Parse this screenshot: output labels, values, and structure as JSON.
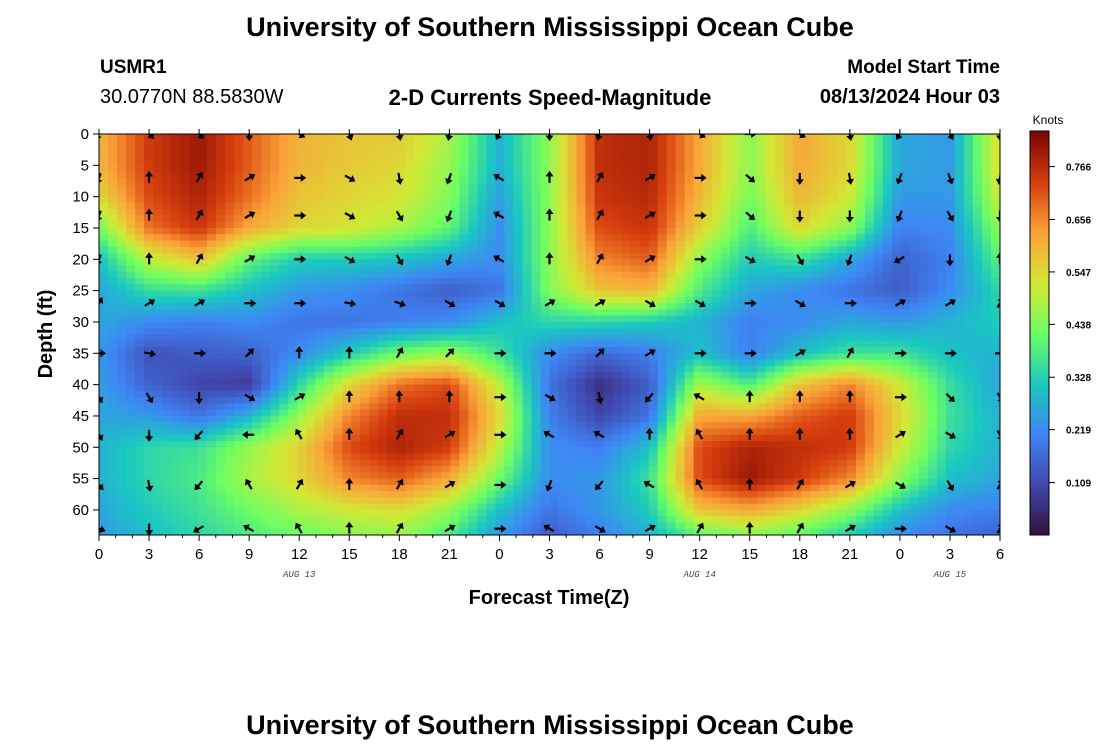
{
  "page": {
    "title": "University of Southern Mississippi Ocean Cube",
    "footer_title": "University of Southern Mississippi Ocean Cube"
  },
  "station": {
    "id": "USMR1",
    "coords": "30.0770N  88.5830W"
  },
  "plot": {
    "subtitle": "2-D Currents Speed-Magnitude",
    "model_start_label": "Model Start Time",
    "model_start_value": "08/13/2024 Hour 03"
  },
  "colors": {
    "background": "#ffffff",
    "axis": "#000000",
    "arrow": "#000000"
  },
  "chart_data": {
    "type": "heatmap",
    "title": "2-D Currents Speed-Magnitude",
    "xlabel": "Forecast Time(Z)",
    "ylabel": "Depth (ft)",
    "x_tick_labels": [
      "0",
      "3",
      "6",
      "9",
      "12",
      "15",
      "18",
      "21",
      "0",
      "3",
      "6",
      "9",
      "12",
      "15",
      "18",
      "21",
      "0",
      "3",
      "6"
    ],
    "x_range_hours": [
      0,
      54
    ],
    "y_ticks": [
      0,
      5,
      10,
      15,
      20,
      25,
      30,
      35,
      40,
      45,
      50,
      55,
      60
    ],
    "y_range_ft": [
      0,
      64
    ],
    "y_inverted": true,
    "date_labels": [
      {
        "text": "AUG 13",
        "hour": 12
      },
      {
        "text": "AUG 14",
        "hour": 36
      },
      {
        "text": "AUG 15",
        "hour": 51
      }
    ],
    "colorbar": {
      "unit": "Knots",
      "ticks": [
        0.766,
        0.656,
        0.547,
        0.438,
        0.328,
        0.219,
        0.109
      ],
      "range": [
        0.0,
        0.84
      ]
    },
    "speed_knots": {
      "x_hours": [
        0,
        3,
        6,
        9,
        12,
        15,
        18,
        21,
        24,
        27,
        30,
        33,
        36,
        39,
        42,
        45,
        48,
        51,
        54
      ],
      "depth_ft": [
        0,
        5,
        10,
        15,
        20,
        25,
        30,
        35,
        40,
        45,
        50,
        55,
        60,
        64
      ],
      "values": [
        [
          0.6,
          0.74,
          0.8,
          0.7,
          0.6,
          0.58,
          0.57,
          0.48,
          0.28,
          0.45,
          0.76,
          0.78,
          0.62,
          0.45,
          0.62,
          0.55,
          0.26,
          0.24,
          0.55
        ],
        [
          0.6,
          0.74,
          0.8,
          0.7,
          0.6,
          0.57,
          0.55,
          0.46,
          0.28,
          0.45,
          0.76,
          0.78,
          0.62,
          0.45,
          0.62,
          0.55,
          0.26,
          0.24,
          0.55
        ],
        [
          0.55,
          0.72,
          0.78,
          0.68,
          0.58,
          0.55,
          0.53,
          0.44,
          0.25,
          0.45,
          0.75,
          0.77,
          0.6,
          0.43,
          0.6,
          0.52,
          0.24,
          0.24,
          0.52
        ],
        [
          0.42,
          0.68,
          0.75,
          0.62,
          0.55,
          0.53,
          0.48,
          0.4,
          0.22,
          0.45,
          0.72,
          0.75,
          0.56,
          0.38,
          0.55,
          0.45,
          0.2,
          0.22,
          0.46
        ],
        [
          0.3,
          0.5,
          0.58,
          0.4,
          0.32,
          0.32,
          0.3,
          0.26,
          0.22,
          0.45,
          0.66,
          0.7,
          0.45,
          0.32,
          0.36,
          0.26,
          0.15,
          0.2,
          0.4
        ],
        [
          0.26,
          0.35,
          0.36,
          0.3,
          0.24,
          0.22,
          0.18,
          0.14,
          0.18,
          0.44,
          0.58,
          0.6,
          0.38,
          0.26,
          0.22,
          0.18,
          0.14,
          0.22,
          0.34
        ],
        [
          0.26,
          0.22,
          0.2,
          0.22,
          0.18,
          0.18,
          0.2,
          0.22,
          0.3,
          0.34,
          0.34,
          0.32,
          0.28,
          0.2,
          0.22,
          0.26,
          0.24,
          0.28,
          0.32
        ],
        [
          0.24,
          0.12,
          0.14,
          0.15,
          0.22,
          0.32,
          0.42,
          0.46,
          0.36,
          0.22,
          0.16,
          0.2,
          0.3,
          0.2,
          0.3,
          0.36,
          0.36,
          0.3,
          0.28
        ],
        [
          0.25,
          0.15,
          0.1,
          0.08,
          0.34,
          0.55,
          0.68,
          0.72,
          0.5,
          0.18,
          0.06,
          0.14,
          0.48,
          0.38,
          0.58,
          0.66,
          0.52,
          0.35,
          0.26
        ],
        [
          0.26,
          0.24,
          0.18,
          0.28,
          0.46,
          0.66,
          0.76,
          0.76,
          0.55,
          0.2,
          0.1,
          0.18,
          0.62,
          0.62,
          0.7,
          0.74,
          0.55,
          0.36,
          0.28
        ],
        [
          0.28,
          0.34,
          0.36,
          0.46,
          0.56,
          0.72,
          0.78,
          0.74,
          0.5,
          0.22,
          0.2,
          0.3,
          0.72,
          0.78,
          0.76,
          0.74,
          0.52,
          0.34,
          0.28
        ],
        [
          0.28,
          0.34,
          0.38,
          0.48,
          0.55,
          0.66,
          0.7,
          0.62,
          0.42,
          0.22,
          0.24,
          0.36,
          0.72,
          0.8,
          0.74,
          0.66,
          0.45,
          0.3,
          0.26
        ],
        [
          0.26,
          0.32,
          0.36,
          0.42,
          0.48,
          0.52,
          0.54,
          0.46,
          0.3,
          0.18,
          0.24,
          0.32,
          0.58,
          0.62,
          0.55,
          0.45,
          0.3,
          0.22,
          0.2
        ],
        [
          0.24,
          0.3,
          0.34,
          0.38,
          0.42,
          0.45,
          0.46,
          0.38,
          0.24,
          0.14,
          0.2,
          0.28,
          0.4,
          0.45,
          0.4,
          0.32,
          0.22,
          0.18,
          0.15
        ]
      ]
    },
    "direction_deg": {
      "x_hours": [
        0,
        3,
        6,
        9,
        12,
        15,
        18,
        21,
        24,
        27,
        30,
        33,
        36,
        39,
        42,
        45,
        48,
        51,
        54
      ],
      "depth_ft": [
        0,
        7,
        13,
        20,
        27,
        35,
        42,
        48,
        56,
        63
      ],
      "values": [
        [
          210,
          135,
          135,
          180,
          120,
          160,
          170,
          190,
          210,
          180,
          200,
          170,
          120,
          90,
          120,
          170,
          210,
          150,
          180
        ],
        [
          200,
          0,
          30,
          60,
          90,
          120,
          170,
          200,
          300,
          0,
          30,
          60,
          90,
          130,
          180,
          170,
          200,
          160,
          190
        ],
        [
          200,
          0,
          30,
          60,
          90,
          120,
          150,
          200,
          300,
          0,
          30,
          60,
          90,
          130,
          180,
          180,
          200,
          150,
          180
        ],
        [
          200,
          0,
          30,
          60,
          90,
          120,
          150,
          200,
          300,
          0,
          30,
          60,
          90,
          120,
          150,
          200,
          240,
          180,
          0
        ],
        [
          30,
          60,
          60,
          90,
          90,
          100,
          110,
          120,
          120,
          60,
          60,
          120,
          120,
          90,
          120,
          90,
          60,
          60,
          30
        ],
        [
          90,
          100,
          90,
          45,
          0,
          0,
          30,
          45,
          90,
          90,
          45,
          60,
          90,
          90,
          60,
          30,
          90,
          90,
          90
        ],
        [
          150,
          150,
          180,
          120,
          60,
          0,
          0,
          0,
          90,
          120,
          170,
          220,
          300,
          0,
          0,
          0,
          90,
          135,
          150
        ],
        [
          150,
          180,
          220,
          270,
          330,
          0,
          30,
          60,
          90,
          300,
          300,
          0,
          330,
          0,
          0,
          0,
          60,
          120,
          150
        ],
        [
          140,
          170,
          220,
          330,
          30,
          0,
          30,
          60,
          90,
          200,
          220,
          300,
          330,
          0,
          30,
          60,
          120,
          150,
          30
        ],
        [
          110,
          180,
          240,
          300,
          330,
          0,
          30,
          60,
          90,
          300,
          120,
          60,
          30,
          0,
          30,
          60,
          90,
          120,
          30
        ]
      ]
    }
  }
}
